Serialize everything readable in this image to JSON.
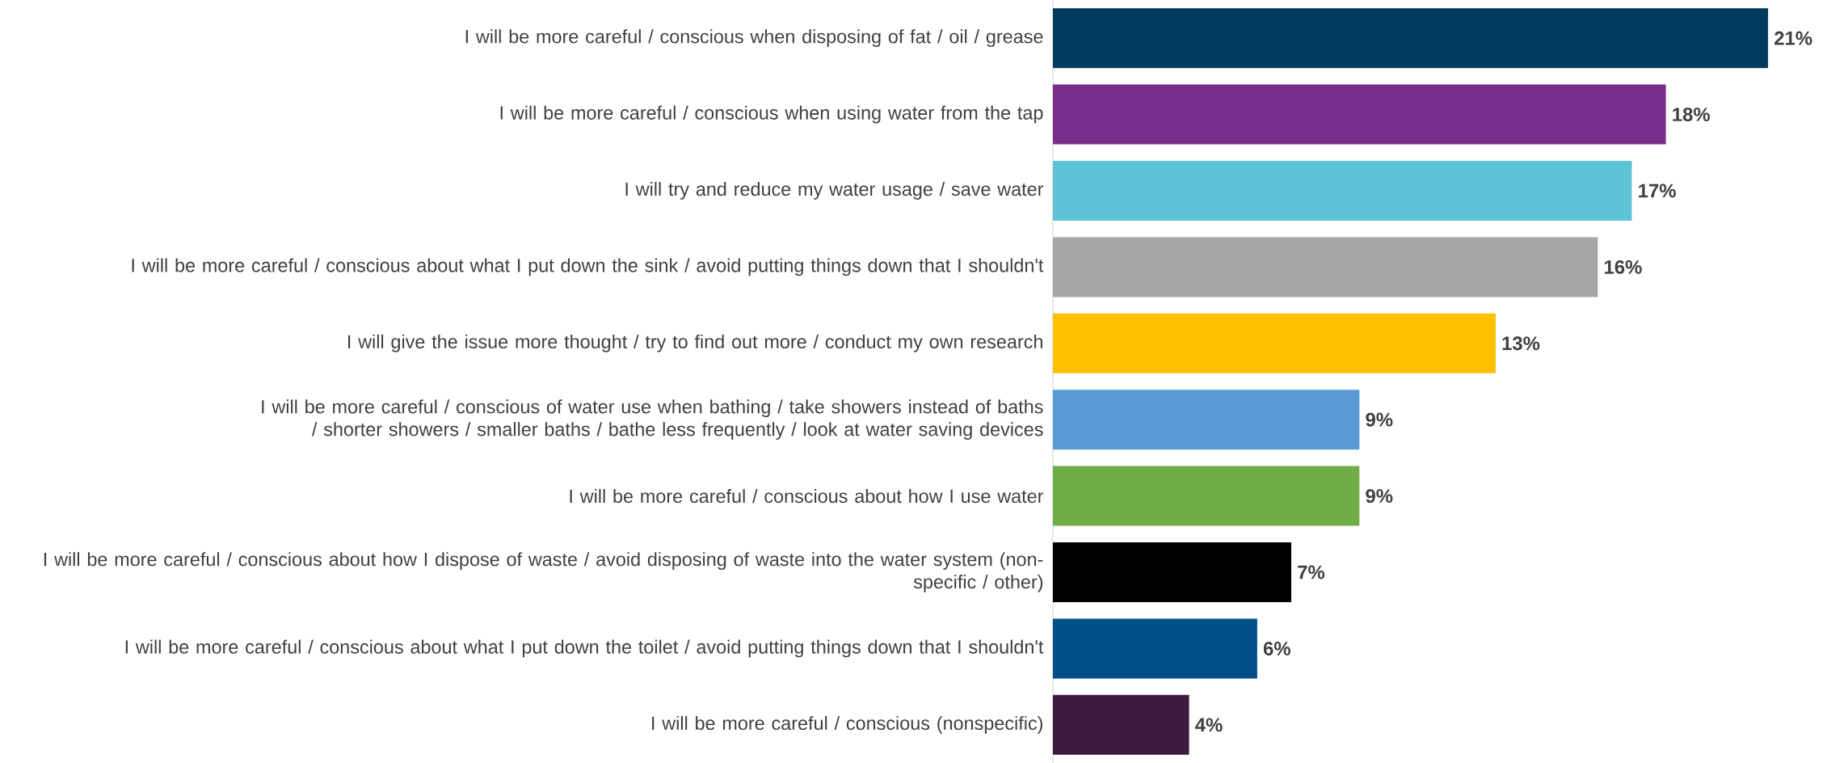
{
  "chart_data": {
    "type": "bar",
    "orientation": "horizontal",
    "categories": [
      "I will be more careful / conscious when disposing of fat / oil / grease",
      "I will be more careful / conscious when using water from the tap",
      "I will try and reduce my water usage / save water",
      "I will be more careful / conscious about what I put down the sink / avoid putting things down that I shouldn't",
      "I will give the issue more thought / try to find out more / conduct my own research",
      "I will be more careful / conscious of water use when bathing / take showers instead of baths / shorter showers / smaller baths / bathe less frequently / look at water saving devices",
      "I will be more careful / conscious about how I use water",
      "I will be more careful / conscious about how I dispose of waste / avoid disposing of waste into the water system (non-specific / other)",
      "I will be more careful / conscious about what I put down the toilet / avoid putting things down that I shouldn't",
      "I will be more careful / conscious (nonspecific)"
    ],
    "values": [
      21,
      18,
      17,
      16,
      13,
      9,
      9,
      7,
      6,
      4
    ],
    "value_labels": [
      "21%",
      "18%",
      "17%",
      "16%",
      "13%",
      "9%",
      "9%",
      "7%",
      "6%",
      "4%"
    ],
    "colors": [
      "#003a5d",
      "#7b2d8b",
      "#5fc3d8",
      "#a6a6a6",
      "#ffc000",
      "#5b9bd5",
      "#70ad47",
      "#000000",
      "#004f89",
      "#3f1a40"
    ],
    "tick_labels": "y"
  }
}
